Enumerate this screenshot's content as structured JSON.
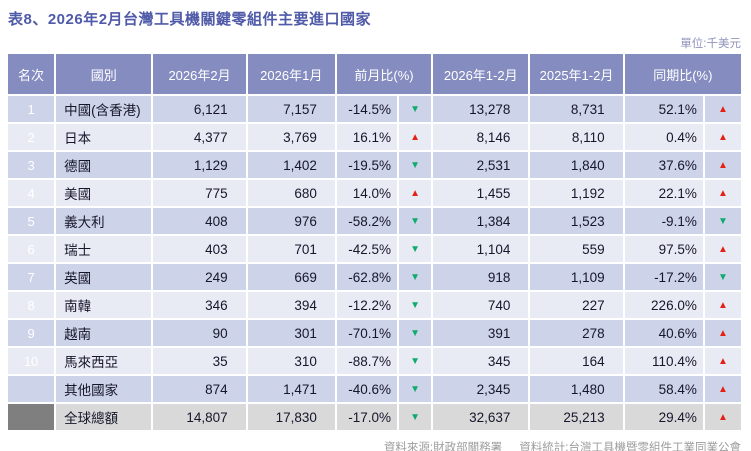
{
  "title": "表8、2026年2月台灣工具機關鍵零組件主要進口國家",
  "unit_label": "單位:千美元",
  "colors": {
    "header-bg": "#858cc0",
    "rank-bg": "#858cc0",
    "row-odd": "#cdd3e8",
    "row-even": "#e9ebf4",
    "total-row-bg": "#d9d9d9",
    "total-rank-bg": "#7f7f7f",
    "title": "#4f5aa8",
    "unit": "#8f94bb",
    "footer-text": "#9c9c9c",
    "header-text": "#ffffff",
    "cell-text": "#16162c",
    "trend-up": "#e32119",
    "trend-down": "#10a96e"
  },
  "icons": {
    "trend_up": "▲",
    "trend_down": "▼"
  },
  "table": {
    "columns": [
      "名次",
      "國別",
      "2026年2月",
      "2026年1月",
      "前月比(%)",
      "2026年1-2月",
      "2025年1-2月",
      "同期比(%)"
    ],
    "rows": [
      {
        "rank": "1",
        "country": "中國(含香港)",
        "feb_2026": "6,121",
        "jan_2026": "7,157",
        "mom_pct": "-14.5%",
        "mom_dir": "down",
        "ytd_2026": "13,278",
        "ytd_2025": "8,731",
        "yoy_pct": "52.1%",
        "yoy_dir": "up",
        "total": false
      },
      {
        "rank": "2",
        "country": "日本",
        "feb_2026": "4,377",
        "jan_2026": "3,769",
        "mom_pct": "16.1%",
        "mom_dir": "up",
        "ytd_2026": "8,146",
        "ytd_2025": "8,110",
        "yoy_pct": "0.4%",
        "yoy_dir": "up",
        "total": false
      },
      {
        "rank": "3",
        "country": "德國",
        "feb_2026": "1,129",
        "jan_2026": "1,402",
        "mom_pct": "-19.5%",
        "mom_dir": "down",
        "ytd_2026": "2,531",
        "ytd_2025": "1,840",
        "yoy_pct": "37.6%",
        "yoy_dir": "up",
        "total": false
      },
      {
        "rank": "4",
        "country": "美國",
        "feb_2026": "775",
        "jan_2026": "680",
        "mom_pct": "14.0%",
        "mom_dir": "up",
        "ytd_2026": "1,455",
        "ytd_2025": "1,192",
        "yoy_pct": "22.1%",
        "yoy_dir": "up",
        "total": false
      },
      {
        "rank": "5",
        "country": "義大利",
        "feb_2026": "408",
        "jan_2026": "976",
        "mom_pct": "-58.2%",
        "mom_dir": "down",
        "ytd_2026": "1,384",
        "ytd_2025": "1,523",
        "yoy_pct": "-9.1%",
        "yoy_dir": "down",
        "total": false
      },
      {
        "rank": "6",
        "country": "瑞士",
        "feb_2026": "403",
        "jan_2026": "701",
        "mom_pct": "-42.5%",
        "mom_dir": "down",
        "ytd_2026": "1,104",
        "ytd_2025": "559",
        "yoy_pct": "97.5%",
        "yoy_dir": "up",
        "total": false
      },
      {
        "rank": "7",
        "country": "英國",
        "feb_2026": "249",
        "jan_2026": "669",
        "mom_pct": "-62.8%",
        "mom_dir": "down",
        "ytd_2026": "918",
        "ytd_2025": "1,109",
        "yoy_pct": "-17.2%",
        "yoy_dir": "down",
        "total": false
      },
      {
        "rank": "8",
        "country": "南韓",
        "feb_2026": "346",
        "jan_2026": "394",
        "mom_pct": "-12.2%",
        "mom_dir": "down",
        "ytd_2026": "740",
        "ytd_2025": "227",
        "yoy_pct": "226.0%",
        "yoy_dir": "up",
        "total": false
      },
      {
        "rank": "9",
        "country": "越南",
        "feb_2026": "90",
        "jan_2026": "301",
        "mom_pct": "-70.1%",
        "mom_dir": "down",
        "ytd_2026": "391",
        "ytd_2025": "278",
        "yoy_pct": "40.6%",
        "yoy_dir": "up",
        "total": false
      },
      {
        "rank": "10",
        "country": "馬來西亞",
        "feb_2026": "35",
        "jan_2026": "310",
        "mom_pct": "-88.7%",
        "mom_dir": "down",
        "ytd_2026": "345",
        "ytd_2025": "164",
        "yoy_pct": "110.4%",
        "yoy_dir": "up",
        "total": false
      },
      {
        "rank": "",
        "country": "其他國家",
        "feb_2026": "874",
        "jan_2026": "1,471",
        "mom_pct": "-40.6%",
        "mom_dir": "down",
        "ytd_2026": "2,345",
        "ytd_2025": "1,480",
        "yoy_pct": "58.4%",
        "yoy_dir": "up",
        "total": false
      },
      {
        "rank": "",
        "country": "全球總額",
        "feb_2026": "14,807",
        "jan_2026": "17,830",
        "mom_pct": "-17.0%",
        "mom_dir": "down",
        "ytd_2026": "32,637",
        "ytd_2025": "25,213",
        "yoy_pct": "29.4%",
        "yoy_dir": "up",
        "total": true
      }
    ]
  },
  "footer": {
    "source": "資料來源:財政部關務署",
    "statistics": "資料統計:台灣工具機暨零組件工業同業公會"
  }
}
